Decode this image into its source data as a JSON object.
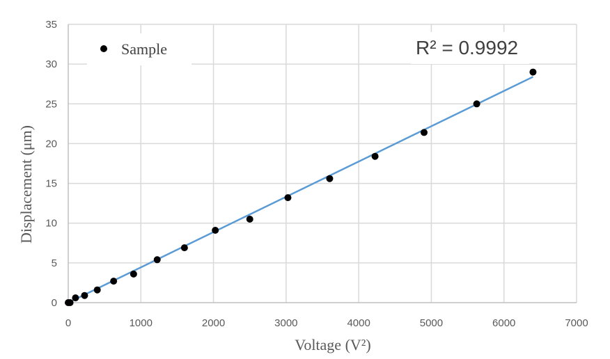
{
  "chart_data": {
    "type": "scatter",
    "xlabel": "Voltage (V²)",
    "ylabel": "Displacement (μm)",
    "xlim": [
      0,
      7000
    ],
    "ylim": [
      0,
      35
    ],
    "x_ticks": [
      0,
      1000,
      2000,
      3000,
      4000,
      5000,
      6000,
      7000
    ],
    "y_ticks": [
      0,
      5,
      10,
      15,
      20,
      25,
      30,
      35
    ],
    "grid": true,
    "legend_position": "top-left",
    "series": [
      {
        "name": "Sample",
        "marker_color": "#000000",
        "points": [
          {
            "x": 0,
            "y": 0
          },
          {
            "x": 25,
            "y": 0
          },
          {
            "x": 100,
            "y": 0.6
          },
          {
            "x": 225,
            "y": 0.9
          },
          {
            "x": 400,
            "y": 1.6
          },
          {
            "x": 625,
            "y": 2.7
          },
          {
            "x": 900,
            "y": 3.6
          },
          {
            "x": 1225,
            "y": 5.4
          },
          {
            "x": 1600,
            "y": 6.9
          },
          {
            "x": 2025,
            "y": 9.1
          },
          {
            "x": 2500,
            "y": 10.5
          },
          {
            "x": 3025,
            "y": 13.2
          },
          {
            "x": 3600,
            "y": 15.6
          },
          {
            "x": 4225,
            "y": 18.4
          },
          {
            "x": 4900,
            "y": 21.4
          },
          {
            "x": 5625,
            "y": 25.0
          },
          {
            "x": 6400,
            "y": 29.0
          }
        ]
      }
    ],
    "trendline": {
      "type": "linear",
      "color": "#5b9bd5",
      "x_range": [
        0,
        6400
      ],
      "y_start": 0,
      "y_end": 28.4
    },
    "annotation": "R² = 0.9992"
  }
}
